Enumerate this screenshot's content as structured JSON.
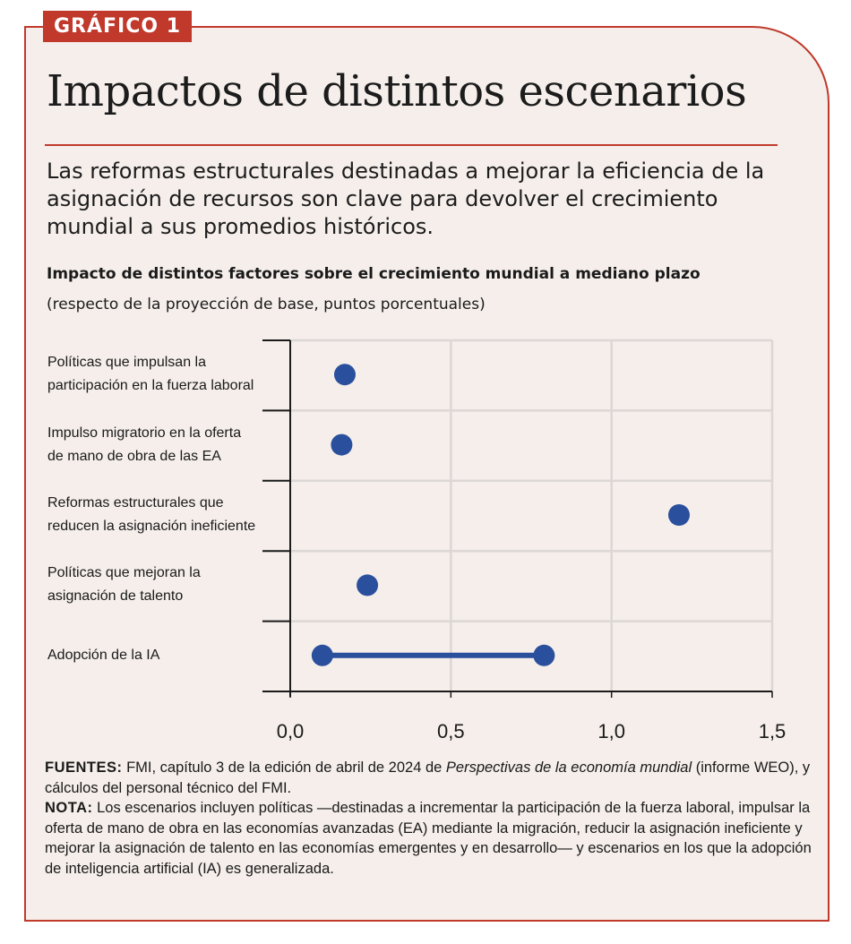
{
  "badge": "GRÁFICO 1",
  "title": "Impactos de distintos escenarios",
  "subtitle": "Las reformas estructurales destinadas a mejorar la eficiencia de la asignación de recursos son clave para devolver el crecimiento mundial a sus promedios históricos.",
  "colors": {
    "accent": "#c0392b",
    "marker": "#2a4f9c",
    "background": "#f5eeeb",
    "grid": "#dcd7d4"
  },
  "chart_data": {
    "type": "dot-range",
    "title": "Impacto de distintos factores sobre el crecimiento mundial a mediano plazo",
    "subtitle": "(respecto de la proyección de base, puntos porcentuales)",
    "xlabel": "",
    "ylabel": "",
    "xlim": [
      0,
      1.5
    ],
    "xticks": [
      0,
      0.5,
      1.0,
      1.5
    ],
    "xtick_labels": [
      "0,0",
      "0,5",
      "1,0",
      "1,5"
    ],
    "grid": true,
    "categories": [
      "Políticas que impulsan la participación en la fuerza laboral",
      "Impulso migratorio en la oferta de mano de obra de las EA",
      "Reformas estructurales que reducen la asignación ineficiente",
      "Políticas que mejoran la asignación de talento",
      "Adopción de la IA"
    ],
    "category_lines": [
      [
        "Políticas que impulsan la",
        "participación en la fuerza laboral"
      ],
      [
        "Impulso migratorio en la oferta",
        "de mano de obra de las EA"
      ],
      [
        "Reformas estructurales que",
        "reducen la asignación ineficiente"
      ],
      [
        "Políticas que mejoran la",
        "asignación de talento"
      ],
      [
        "Adopción de la IA"
      ]
    ],
    "values": [
      {
        "min": 0.17,
        "max": 0.17
      },
      {
        "min": 0.16,
        "max": 0.16
      },
      {
        "min": 1.21,
        "max": 1.21
      },
      {
        "min": 0.24,
        "max": 0.24
      },
      {
        "min": 0.1,
        "max": 0.79
      }
    ]
  },
  "footnote": {
    "sources_label": "FUENTES:",
    "sources_text_1": " FMI, capítulo 3 de la edición de abril de 2024 de ",
    "sources_italic": "Perspectivas de la economía mundial",
    "sources_text_2": " (informe WEO), y cálculos del personal técnico del FMI.",
    "note_label": "NOTA:",
    "note_text": " Los escenarios incluyen políticas —destinadas a incrementar la participación de la fuerza laboral, impulsar la oferta de mano de obra en las economías avanzadas (EA) mediante la migración, reducir la asignación ineficiente y mejorar la asignación de talento en las economías emergentes y en desarrollo— y escenarios en los que la adopción de inteligencia artificial (IA) es generalizada."
  }
}
